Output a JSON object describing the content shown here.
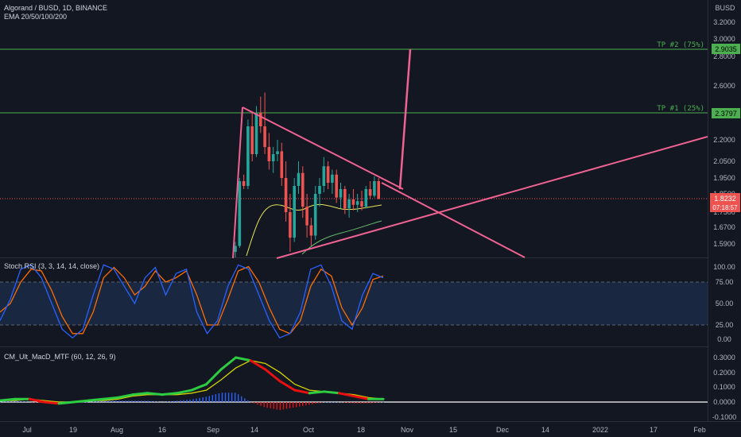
{
  "header": {
    "symbol": "Algorand / BUSD, 1D, BINANCE",
    "indicator": "EMA 20/50/100/200",
    "currency": "BUSD"
  },
  "price_axis": {
    "ticks": [
      "3.2000",
      "3.0000",
      "2.8000",
      "2.6000",
      "2.2000",
      "2.0500",
      "1.9500",
      "1.8500",
      "1.7500",
      "1.6700",
      "1.5900"
    ],
    "current_price": "1.8232",
    "countdown": "07:18:57",
    "tp2_value": "2.9035",
    "tp1_value": "2.3797"
  },
  "targets": {
    "tp2_label": "TP #2 (75%)",
    "tp1_label": "TP #1 (25%)"
  },
  "stoch": {
    "label": "Stoch RSI (3, 3, 14, 14, close)",
    "ticks": [
      "100.00",
      "75.00",
      "50.00",
      "25.00",
      "0.00"
    ]
  },
  "macd": {
    "label": "CM_Ult_MacD_MTF (60, 12, 26, 9)",
    "ticks": [
      "0.3000",
      "0.2000",
      "0.1000",
      "0.0000",
      "-0.1000"
    ]
  },
  "time_axis": [
    "Jul",
    "19",
    "Aug",
    "16",
    "Sep",
    "14",
    "Oct",
    "18",
    "Nov",
    "15",
    "Dec",
    "14",
    "2022",
    "17",
    "Feb"
  ],
  "colors": {
    "bg": "#131722",
    "up": "#26a69a",
    "down": "#ef5350",
    "pattern": "#f06292",
    "target": "#4caf50",
    "rsi_k": "#2962ff",
    "rsi_d": "#ff6d00",
    "ema_yellow": "#e6e25a",
    "ema_green": "#66bb6a",
    "macd_up": "#2ecc40",
    "macd_dn": "#e81010",
    "macd_sig": "#d4d400"
  },
  "chart_data": {
    "type": "candlestick",
    "title": "Algorand / BUSD, 1D, BINANCE",
    "ylim": [
      1.55,
      3.25
    ],
    "current": 1.8232,
    "targets": [
      {
        "name": "TP #2 (75%)",
        "price": 2.9035
      },
      {
        "name": "TP #1 (25%)",
        "price": 2.3797
      }
    ],
    "candles": [
      [
        1.55,
        1.6,
        1.5,
        1.58
      ],
      [
        1.58,
        1.95,
        1.57,
        1.93
      ],
      [
        1.93,
        1.97,
        1.88,
        1.9
      ],
      [
        1.9,
        2.35,
        1.88,
        2.3
      ],
      [
        2.3,
        2.4,
        2.05,
        2.1
      ],
      [
        2.1,
        2.45,
        2.08,
        2.4
      ],
      [
        2.4,
        2.52,
        2.25,
        2.3
      ],
      [
        2.3,
        2.55,
        2.1,
        2.15
      ],
      [
        2.15,
        2.25,
        2.0,
        2.05
      ],
      [
        2.05,
        2.15,
        1.98,
        2.1
      ],
      [
        2.1,
        2.2,
        2.05,
        2.12
      ],
      [
        2.12,
        2.18,
        1.9,
        1.95
      ],
      [
        1.95,
        2.05,
        1.7,
        1.75
      ],
      [
        1.75,
        1.85,
        1.55,
        1.62
      ],
      [
        1.62,
        1.95,
        1.6,
        1.9
      ],
      [
        1.9,
        2.05,
        1.85,
        1.98
      ],
      [
        1.98,
        2.02,
        1.72,
        1.78
      ],
      [
        1.78,
        1.85,
        1.62,
        1.68
      ],
      [
        1.68,
        1.72,
        1.58,
        1.63
      ],
      [
        1.63,
        1.9,
        1.61,
        1.85
      ],
      [
        1.85,
        1.95,
        1.78,
        1.9
      ],
      [
        1.9,
        2.08,
        1.86,
        2.02
      ],
      [
        2.02,
        2.05,
        1.88,
        1.92
      ],
      [
        1.92,
        2.0,
        1.85,
        1.97
      ],
      [
        1.97,
        2.0,
        1.8,
        1.83
      ],
      [
        1.83,
        1.92,
        1.77,
        1.88
      ],
      [
        1.88,
        1.9,
        1.74,
        1.77
      ],
      [
        1.77,
        1.85,
        1.72,
        1.82
      ],
      [
        1.82,
        1.88,
        1.76,
        1.79
      ],
      [
        1.79,
        1.85,
        1.75,
        1.81
      ],
      [
        1.81,
        1.87,
        1.76,
        1.78
      ],
      [
        1.78,
        1.9,
        1.77,
        1.88
      ],
      [
        1.88,
        1.93,
        1.82,
        1.84
      ],
      [
        1.84,
        1.96,
        1.83,
        1.93
      ],
      [
        1.93,
        1.95,
        1.82,
        1.8232
      ]
    ],
    "stoch_rsi": {
      "k": [
        30,
        55,
        90,
        95,
        80,
        50,
        20,
        10,
        20,
        60,
        95,
        90,
        70,
        50,
        80,
        92,
        60,
        85,
        90,
        40,
        15,
        30,
        70,
        95,
        90,
        60,
        30,
        10,
        15,
        40,
        90,
        95,
        70,
        30,
        20,
        60,
        85,
        80
      ],
      "d": [
        40,
        50,
        75,
        90,
        88,
        65,
        35,
        15,
        15,
        40,
        80,
        92,
        80,
        60,
        70,
        88,
        75,
        80,
        88,
        60,
        25,
        25,
        55,
        88,
        93,
        75,
        45,
        20,
        15,
        30,
        70,
        90,
        82,
        45,
        25,
        45,
        78,
        82
      ]
    },
    "macd": {
      "macd": [
        0.01,
        0.02,
        0.02,
        0.0,
        -0.01,
        0.0,
        0.01,
        0.02,
        0.03,
        0.05,
        0.06,
        0.05,
        0.06,
        0.08,
        0.12,
        0.22,
        0.3,
        0.28,
        0.22,
        0.14,
        0.08,
        0.06,
        0.07,
        0.06,
        0.04,
        0.02,
        0.02
      ],
      "signal": [
        0.01,
        0.01,
        0.02,
        0.01,
        0.0,
        0.0,
        0.01,
        0.01,
        0.02,
        0.04,
        0.05,
        0.05,
        0.05,
        0.06,
        0.08,
        0.15,
        0.23,
        0.28,
        0.26,
        0.2,
        0.12,
        0.08,
        0.07,
        0.06,
        0.05,
        0.03,
        0.02
      ]
    }
  }
}
